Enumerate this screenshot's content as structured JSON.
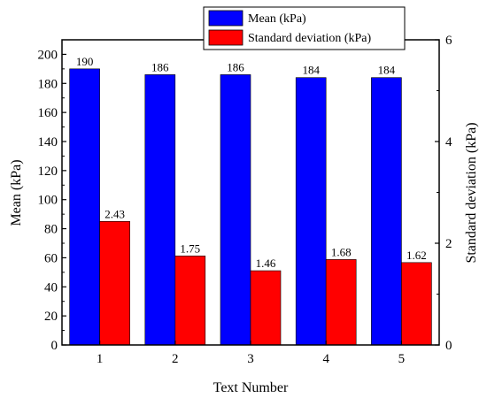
{
  "chart_data": {
    "type": "bar",
    "categories": [
      "1",
      "2",
      "3",
      "4",
      "5"
    ],
    "xlabel": "Text Number",
    "ylabel_left": "Mean (kPa)",
    "ylabel_right": "Standard deviation (kPa)",
    "ylim_left": [
      0,
      210
    ],
    "ylim_right": [
      0,
      6
    ],
    "yticks_left": [
      0,
      20,
      40,
      60,
      80,
      100,
      120,
      140,
      160,
      180,
      200
    ],
    "yticks_right": [
      0,
      2,
      4,
      6
    ],
    "series": [
      {
        "name": "Mean (kPa)",
        "axis": "left",
        "color": "#0000ff",
        "values": [
          190,
          186,
          186,
          184,
          184
        ],
        "labels": [
          "190",
          "186",
          "186",
          "184",
          "184"
        ]
      },
      {
        "name": "Standard deviation (kPa)",
        "axis": "right",
        "color": "#ff0000",
        "values": [
          2.43,
          1.75,
          1.46,
          1.68,
          1.62
        ],
        "labels": [
          "2.43",
          "1.75",
          "1.46",
          "1.68",
          "1.62"
        ]
      }
    ],
    "legend_position": "top-center",
    "grid": false
  }
}
